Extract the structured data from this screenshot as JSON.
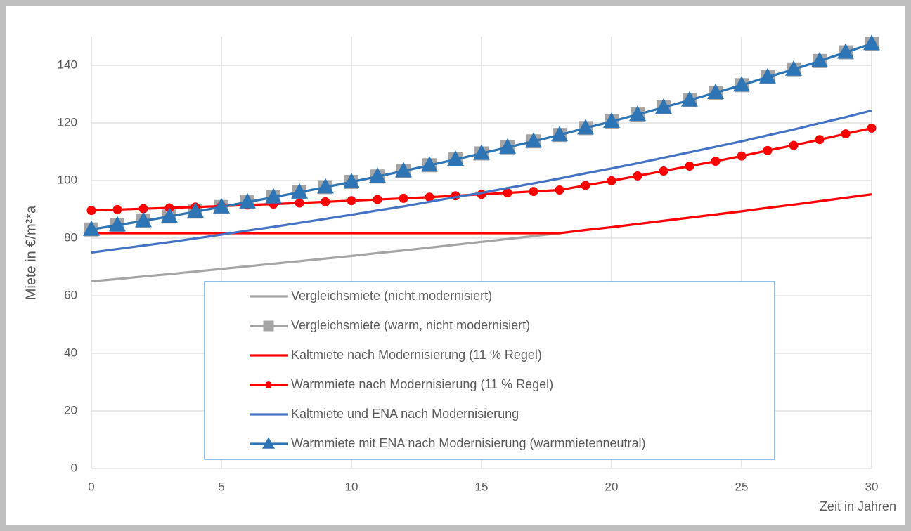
{
  "chart_data": {
    "type": "line",
    "ylabel": "Miete in €/m²*a",
    "xlabel": "Zeit in Jahren",
    "x": [
      0,
      1,
      2,
      3,
      4,
      5,
      6,
      7,
      8,
      9,
      10,
      11,
      12,
      13,
      14,
      15,
      16,
      17,
      18,
      19,
      20,
      21,
      22,
      23,
      24,
      25,
      26,
      27,
      28,
      29,
      30
    ],
    "xlim": [
      0,
      30
    ],
    "xticks": [
      0,
      5,
      10,
      15,
      20,
      25,
      30
    ],
    "ylim": [
      0,
      150
    ],
    "yticks": [
      0,
      20,
      40,
      60,
      80,
      100,
      120,
      140
    ],
    "grid": true,
    "legend": "bottom-center",
    "series": [
      {
        "name": "Vergleichsmiete (nicht modernisiert)",
        "color": "#a5a5a5",
        "marker": "none",
        "values": [
          65.0,
          65.8,
          66.7,
          67.5,
          68.4,
          69.3,
          70.2,
          71.1,
          72.0,
          72.9,
          73.8,
          74.8,
          75.7,
          76.7,
          77.7,
          78.7,
          79.7,
          80.7,
          81.7,
          82.8,
          83.8,
          84.9,
          86.0,
          87.1,
          88.2,
          89.3,
          90.5,
          91.6,
          92.8,
          94.0,
          95.2
        ]
      },
      {
        "name": "Vergleichsmiete (warm, nicht modernisiert)",
        "color": "#a5a5a5",
        "marker": "square",
        "values": [
          83.0,
          84.5,
          86.0,
          87.5,
          89.2,
          90.8,
          92.5,
          94.2,
          95.9,
          97.7,
          99.5,
          101.4,
          103.3,
          105.3,
          107.3,
          109.4,
          111.5,
          113.6,
          115.8,
          118.2,
          120.5,
          122.9,
          125.4,
          127.9,
          130.5,
          133.1,
          135.9,
          138.6,
          141.5,
          144.5,
          147.5
        ]
      },
      {
        "name": "Kaltmiete nach Modernisierung (11 % Regel)",
        "color": "#ff0000",
        "marker": "none",
        "values": [
          81.7,
          81.7,
          81.7,
          81.7,
          81.7,
          81.7,
          81.7,
          81.7,
          81.7,
          81.7,
          81.7,
          81.7,
          81.7,
          81.7,
          81.7,
          81.7,
          81.7,
          81.7,
          81.7,
          82.8,
          83.8,
          84.9,
          86.0,
          87.1,
          88.2,
          89.3,
          90.5,
          91.6,
          92.8,
          94.0,
          95.2
        ]
      },
      {
        "name": "Warmmiete nach Modernisierung (11 % Regel)",
        "color": "#ff0000",
        "marker": "circle",
        "values": [
          89.6,
          89.9,
          90.2,
          90.5,
          90.8,
          91.1,
          91.5,
          91.8,
          92.2,
          92.6,
          93.0,
          93.4,
          93.8,
          94.2,
          94.7,
          95.2,
          95.7,
          96.2,
          96.7,
          98.3,
          99.9,
          101.6,
          103.3,
          105.0,
          106.7,
          108.5,
          110.4,
          112.2,
          114.2,
          116.2,
          118.2
        ]
      },
      {
        "name": "Kaltmiete und ENA nach Modernisierung",
        "color": "#4472c4",
        "marker": "none",
        "values": [
          75.0,
          76.2,
          77.4,
          78.6,
          79.9,
          81.2,
          82.6,
          83.9,
          85.3,
          86.7,
          88.1,
          89.6,
          91.0,
          92.6,
          94.2,
          95.7,
          97.4,
          99.0,
          100.7,
          102.5,
          104.2,
          106.0,
          107.9,
          109.8,
          111.7,
          113.6,
          115.7,
          117.7,
          119.9,
          122.0,
          124.3
        ]
      },
      {
        "name": "Warmmiete mit ENA nach Modernisierung (warmmietenneutral)",
        "color": "#2e75b6",
        "marker": "triangle",
        "values": [
          83.0,
          84.5,
          86.0,
          87.5,
          89.2,
          90.8,
          92.5,
          94.2,
          95.9,
          97.7,
          99.5,
          101.4,
          103.3,
          105.3,
          107.3,
          109.4,
          111.5,
          113.6,
          115.8,
          118.2,
          120.5,
          122.9,
          125.4,
          127.9,
          130.5,
          133.1,
          135.9,
          138.6,
          141.5,
          144.5,
          147.5
        ]
      }
    ]
  }
}
